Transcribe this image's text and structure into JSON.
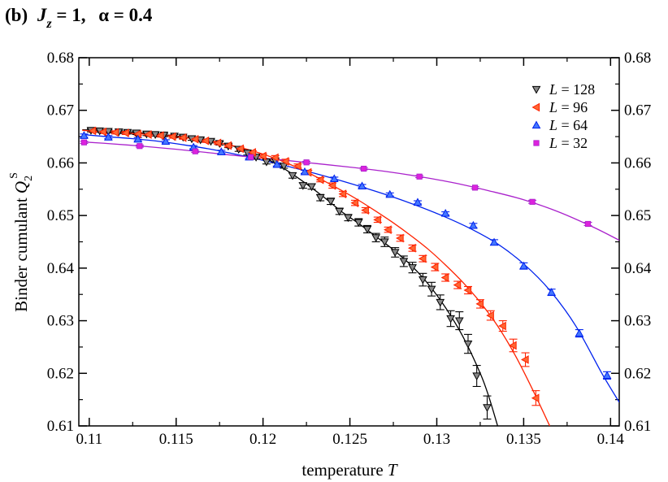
{
  "chart_data": {
    "type": "line",
    "title_parts": {
      "panel": "(b)",
      "jz_symbol": "J",
      "jz_sub": "z",
      "jz_value": " = 1,",
      "alpha_text": "α = 0.4"
    },
    "xlabel": "temperature",
    "xlabel_var": "T",
    "ylabel": "Binder cumulant",
    "ylabel_var": "Q",
    "ylabel_sub": "2",
    "ylabel_sup": "S",
    "xlim": [
      0.1094,
      0.1405
    ],
    "ylim": [
      0.61,
      0.68
    ],
    "x_ticks": [
      "0.11",
      "0.115",
      "0.12",
      "0.125",
      "0.13",
      "0.135",
      "0.14"
    ],
    "y_ticks": [
      "0.61",
      "0.62",
      "0.63",
      "0.64",
      "0.65",
      "0.66",
      "0.67",
      "0.68"
    ],
    "legend_position": "top-right",
    "series": [
      {
        "name": "L = 128",
        "legend_var": "L",
        "legend_value": " = 128",
        "marker": "triangle-down",
        "color": "#000000",
        "marker_fill": "#888888",
        "x": [
          0.1101,
          0.1106,
          0.1111,
          0.1117,
          0.1122,
          0.1127,
          0.1133,
          0.1138,
          0.1143,
          0.1149,
          0.1154,
          0.1159,
          0.1164,
          0.117,
          0.1175,
          0.118,
          0.1186,
          0.1191,
          0.1196,
          0.1202,
          0.1207,
          0.1212,
          0.1217,
          0.1223,
          0.1228,
          0.1233,
          0.1239,
          0.1244,
          0.1249,
          0.1255,
          0.126,
          0.1265,
          0.127,
          0.1276,
          0.1281,
          0.1286,
          0.1292,
          0.1297,
          0.1302,
          0.1308,
          0.1313,
          0.1318,
          0.1323,
          0.1329
        ],
        "y": [
          0.6662,
          0.6661,
          0.666,
          0.6659,
          0.6658,
          0.6657,
          0.6655,
          0.6654,
          0.6653,
          0.6651,
          0.6649,
          0.6646,
          0.6644,
          0.6641,
          0.6637,
          0.6632,
          0.6626,
          0.6619,
          0.6611,
          0.6602,
          0.6604,
          0.6594,
          0.6576,
          0.6557,
          0.6555,
          0.6534,
          0.6527,
          0.6508,
          0.6496,
          0.6487,
          0.6474,
          0.6458,
          0.645,
          0.643,
          0.6413,
          0.6401,
          0.6378,
          0.636,
          0.6335,
          0.6304,
          0.63,
          0.6256,
          0.6195,
          0.6135
        ],
        "err": [
          0.0003,
          0.0003,
          0.0003,
          0.0003,
          0.0003,
          0.0003,
          0.0003,
          0.0003,
          0.0003,
          0.0003,
          0.0003,
          0.0003,
          0.0003,
          0.0003,
          0.0003,
          0.0003,
          0.0004,
          0.0004,
          0.0004,
          0.0004,
          0.0004,
          0.0004,
          0.0005,
          0.0005,
          0.0005,
          0.0006,
          0.0006,
          0.0006,
          0.0006,
          0.0007,
          0.0007,
          0.0008,
          0.0009,
          0.0009,
          0.001,
          0.001,
          0.0012,
          0.0013,
          0.0014,
          0.0015,
          0.0017,
          0.0018,
          0.002,
          0.0022
        ],
        "fit_x": [
          0.1096,
          0.1105,
          0.1115,
          0.1125,
          0.1135,
          0.1145,
          0.1155,
          0.1165,
          0.1175,
          0.1185,
          0.1195,
          0.1205,
          0.1215,
          0.1225,
          0.1235,
          0.1245,
          0.1255,
          0.1265,
          0.1275,
          0.1285,
          0.1295,
          0.1305,
          0.1315,
          0.1325,
          0.133,
          0.1335
        ],
        "fit_y": [
          0.6663,
          0.6662,
          0.666,
          0.6658,
          0.6655,
          0.6653,
          0.6649,
          0.6645,
          0.6638,
          0.663,
          0.6618,
          0.6603,
          0.6583,
          0.656,
          0.6535,
          0.6508,
          0.6485,
          0.646,
          0.6435,
          0.6406,
          0.637,
          0.6325,
          0.627,
          0.62,
          0.6155,
          0.61
        ]
      },
      {
        "name": "L = 96",
        "legend_var": "L",
        "legend_value": " = 96",
        "marker": "triangle-left",
        "color": "#ff2200",
        "marker_fill": "#ff6633",
        "x": [
          0.1102,
          0.1108,
          0.1115,
          0.1121,
          0.1128,
          0.1134,
          0.1141,
          0.1148,
          0.1154,
          0.1161,
          0.1167,
          0.1174,
          0.118,
          0.1187,
          0.1194,
          0.12,
          0.1207,
          0.1213,
          0.122,
          0.1226,
          0.1233,
          0.124,
          0.1246,
          0.1253,
          0.1259,
          0.1266,
          0.1272,
          0.1279,
          0.1286,
          0.1292,
          0.1299,
          0.1305,
          0.1312,
          0.1318,
          0.1325,
          0.1331,
          0.1338,
          0.1344,
          0.1351,
          0.1357
        ],
        "y": [
          0.6661,
          0.6659,
          0.6658,
          0.6657,
          0.6655,
          0.6654,
          0.6652,
          0.665,
          0.6648,
          0.6645,
          0.6642,
          0.6638,
          0.6633,
          0.6627,
          0.662,
          0.6613,
          0.661,
          0.6603,
          0.6594,
          0.6582,
          0.6568,
          0.6557,
          0.6541,
          0.6524,
          0.651,
          0.6492,
          0.6473,
          0.6457,
          0.6438,
          0.6418,
          0.6402,
          0.6382,
          0.6368,
          0.6358,
          0.6332,
          0.631,
          0.629,
          0.6253,
          0.6226,
          0.6153
        ],
        "err": [
          0.0003,
          0.0003,
          0.0003,
          0.0003,
          0.0003,
          0.0003,
          0.0003,
          0.0003,
          0.0003,
          0.0003,
          0.0003,
          0.0003,
          0.0003,
          0.0003,
          0.0003,
          0.0004,
          0.0004,
          0.0004,
          0.0004,
          0.0004,
          0.0004,
          0.0005,
          0.0005,
          0.0005,
          0.0005,
          0.0005,
          0.0005,
          0.0006,
          0.0006,
          0.0006,
          0.0007,
          0.0007,
          0.0007,
          0.0007,
          0.0008,
          0.0009,
          0.001,
          0.0012,
          0.0013,
          0.0014
        ],
        "fit_x": [
          0.1096,
          0.1105,
          0.1115,
          0.1125,
          0.1135,
          0.1145,
          0.1155,
          0.1165,
          0.1175,
          0.1185,
          0.1195,
          0.1205,
          0.1215,
          0.1225,
          0.1235,
          0.1245,
          0.1255,
          0.1265,
          0.1275,
          0.1285,
          0.1295,
          0.1305,
          0.1315,
          0.1325,
          0.1335,
          0.1345,
          0.1355,
          0.1365
        ],
        "fit_y": [
          0.6662,
          0.666,
          0.6658,
          0.6656,
          0.6654,
          0.6651,
          0.6648,
          0.6644,
          0.6638,
          0.6631,
          0.6622,
          0.6611,
          0.6598,
          0.6583,
          0.6566,
          0.6548,
          0.6529,
          0.6508,
          0.6486,
          0.6462,
          0.6436,
          0.6406,
          0.6373,
          0.6335,
          0.629,
          0.6235,
          0.617,
          0.61
        ]
      },
      {
        "name": "L = 64",
        "legend_var": "L",
        "legend_value": " = 64",
        "marker": "triangle-up",
        "color": "#0022ee",
        "marker_fill": "#4477ff",
        "x": [
          0.1097,
          0.1111,
          0.1128,
          0.1144,
          0.116,
          0.1176,
          0.1192,
          0.1208,
          0.1224,
          0.1241,
          0.1257,
          0.1273,
          0.1289,
          0.1305,
          0.1321,
          0.1333,
          0.135,
          0.1366,
          0.1382,
          0.1398
        ],
        "y": [
          0.6652,
          0.6649,
          0.6645,
          0.6641,
          0.663,
          0.6621,
          0.6611,
          0.6597,
          0.6583,
          0.657,
          0.6556,
          0.654,
          0.6525,
          0.6504,
          0.6481,
          0.6449,
          0.6404,
          0.6354,
          0.6276,
          0.6196
        ],
        "err": [
          0.0003,
          0.0003,
          0.0003,
          0.0003,
          0.0003,
          0.0003,
          0.0003,
          0.0003,
          0.0003,
          0.0003,
          0.0003,
          0.0003,
          0.0003,
          0.0003,
          0.0004,
          0.0005,
          0.0006,
          0.0006,
          0.0007,
          0.0007
        ],
        "fit_x": [
          0.1096,
          0.111,
          0.1125,
          0.114,
          0.1155,
          0.117,
          0.1185,
          0.12,
          0.1215,
          0.123,
          0.1245,
          0.126,
          0.1275,
          0.129,
          0.1305,
          0.132,
          0.1335,
          0.135,
          0.1365,
          0.138,
          0.1395,
          0.1405
        ],
        "fit_y": [
          0.6654,
          0.665,
          0.6646,
          0.6641,
          0.6634,
          0.6626,
          0.6616,
          0.6605,
          0.6593,
          0.658,
          0.6566,
          0.6551,
          0.6535,
          0.6517,
          0.6497,
          0.6474,
          0.6446,
          0.6408,
          0.6358,
          0.629,
          0.62,
          0.6145
        ]
      },
      {
        "name": "L = 32",
        "legend_var": "L",
        "legend_value": " = 32",
        "marker": "square",
        "color": "#aa22cc",
        "marker_fill": "#dd22dd",
        "x": [
          0.1097,
          0.1129,
          0.1161,
          0.1193,
          0.1225,
          0.1258,
          0.129,
          0.1322,
          0.1355,
          0.1387
        ],
        "y": [
          0.6639,
          0.6632,
          0.6622,
          0.6611,
          0.6601,
          0.6589,
          0.6574,
          0.6553,
          0.6526,
          0.6484
        ],
        "err": [
          0.0002,
          0.0002,
          0.0002,
          0.0002,
          0.0002,
          0.0002,
          0.0002,
          0.0002,
          0.0003,
          0.0003
        ],
        "fit_x": [
          0.1096,
          0.111,
          0.113,
          0.115,
          0.117,
          0.119,
          0.121,
          0.123,
          0.125,
          0.127,
          0.129,
          0.131,
          0.133,
          0.135,
          0.137,
          0.139,
          0.1405
        ],
        "fit_y": [
          0.664,
          0.6637,
          0.6632,
          0.6626,
          0.6619,
          0.6612,
          0.6606,
          0.6599,
          0.6592,
          0.6584,
          0.6574,
          0.6562,
          0.6547,
          0.653,
          0.6507,
          0.6478,
          0.6453
        ]
      }
    ]
  }
}
